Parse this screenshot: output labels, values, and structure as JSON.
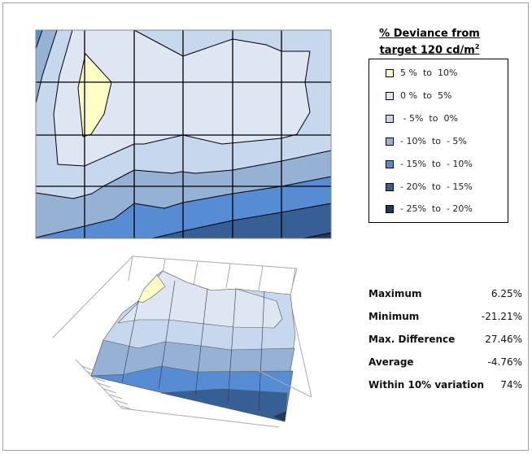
{
  "chart_data": [
    {
      "type": "heatmap",
      "subtype": "contour",
      "title": "% Deviance from target 120 cd/m²",
      "grid": true,
      "legend_placement": "right",
      "grid_columns": 6,
      "grid_rows": 4,
      "legend": [
        {
          "label": "5 %  to  10%",
          "color": "#ffffc6"
        },
        {
          "label": "0 %  to  5%",
          "color": "#dde6f2"
        },
        {
          "label": " - 5%  to  0%",
          "color": "#c6d7ee"
        },
        {
          "label": "- 10%  to  - 5%",
          "color": "#95b1d3"
        },
        {
          "label": "- 15%  to  - 10%",
          "color": "#568cd4"
        },
        {
          "label": "- 20%  to  - 15%",
          "color": "#365f96"
        },
        {
          "label": "- 25%  to  - 20%",
          "color": "#1f3763"
        }
      ]
    },
    {
      "type": "surface",
      "description_colors_same_as_legend": true
    }
  ],
  "legend_title_line1": "% Deviance from",
  "legend_title_line2": "target 120 cd/m",
  "legend_title_sup": "2",
  "stats": [
    {
      "label": "Maximum",
      "value": "6.25%"
    },
    {
      "label": "Minimum",
      "value": "-21.21%"
    },
    {
      "label": "Max. Difference",
      "value": "27.46%"
    },
    {
      "label": "Average",
      "value": "-4.76%"
    },
    {
      "label": "Within 10% variation",
      "value": "74%"
    }
  ]
}
